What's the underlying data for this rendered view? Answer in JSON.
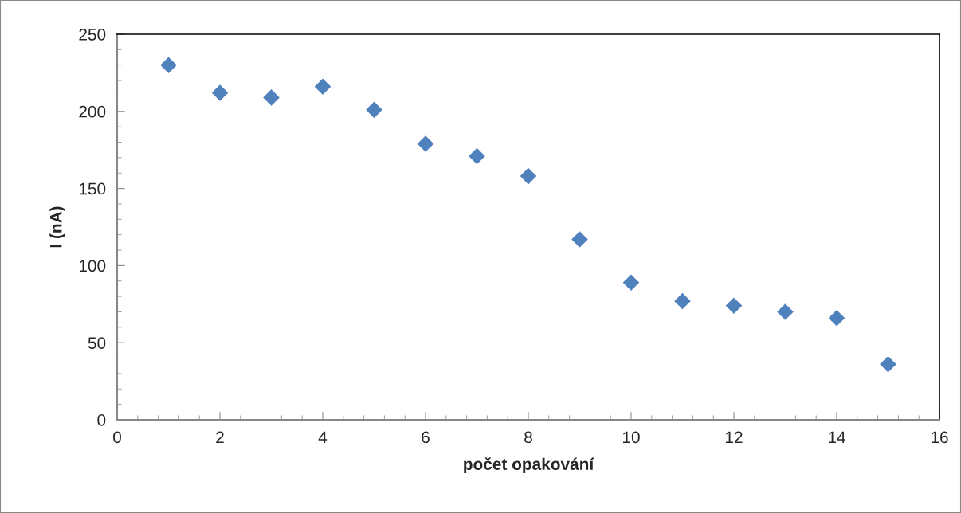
{
  "chart_data": {
    "type": "scatter",
    "xlabel": "počet opakování",
    "ylabel": "I (nA)",
    "x": [
      1,
      2,
      3,
      4,
      5,
      6,
      7,
      8,
      9,
      10,
      11,
      12,
      13,
      14,
      15
    ],
    "series": [
      {
        "color": "#4f81bd",
        "values": [
          230,
          212,
          209,
          216,
          201,
          179,
          171,
          158,
          117,
          89,
          77,
          74,
          70,
          66,
          36
        ]
      }
    ],
    "marker": "diamond",
    "xlim": [
      0,
      16
    ],
    "xticks": [
      0,
      2,
      4,
      6,
      8,
      10,
      12,
      14,
      16
    ],
    "ylim": [
      0,
      250
    ],
    "yticks": [
      0,
      50,
      100,
      150,
      200,
      250
    ],
    "grid": false,
    "legend": false
  }
}
